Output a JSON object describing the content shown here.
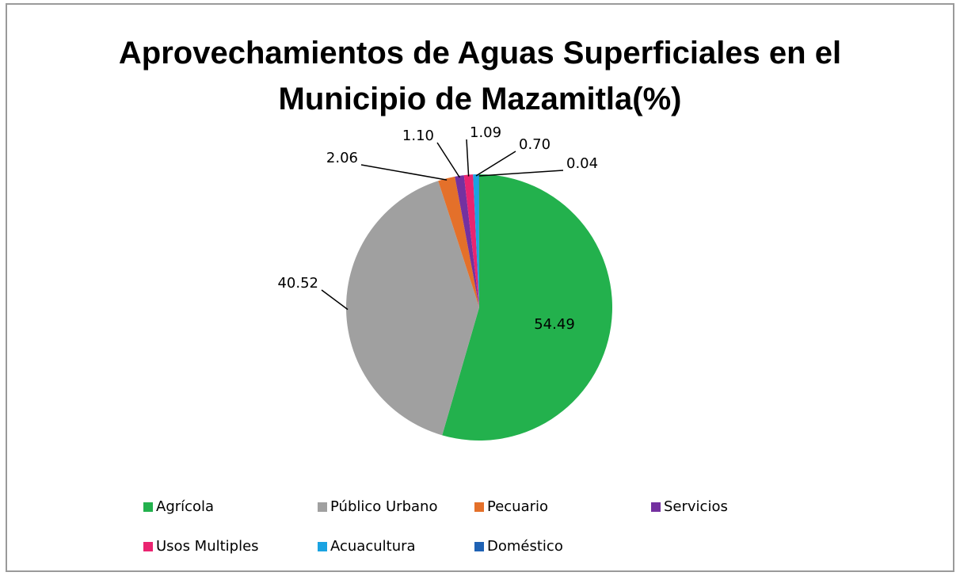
{
  "chart_data": {
    "type": "pie",
    "title": "Aprovechamientos de Aguas Superficiales en el Municipio de Mazamitla(%)",
    "categories": [
      "Agrícola",
      "Público Urbano",
      "Pecuario",
      "Servicios",
      "Usos Multiples",
      "Acuacultura",
      "Doméstico"
    ],
    "values": [
      54.49,
      40.52,
      2.06,
      1.1,
      1.09,
      0.7,
      0.04
    ],
    "value_labels": [
      "54.49",
      "40.52",
      "2.06",
      "1.10",
      "1.09",
      "0.70",
      "0.04"
    ],
    "colors": [
      "#23b14d",
      "#a0a0a0",
      "#e4702a",
      "#7431a0",
      "#ea2470",
      "#1aa3e2",
      "#1f62b4"
    ],
    "legend": "bottom"
  }
}
